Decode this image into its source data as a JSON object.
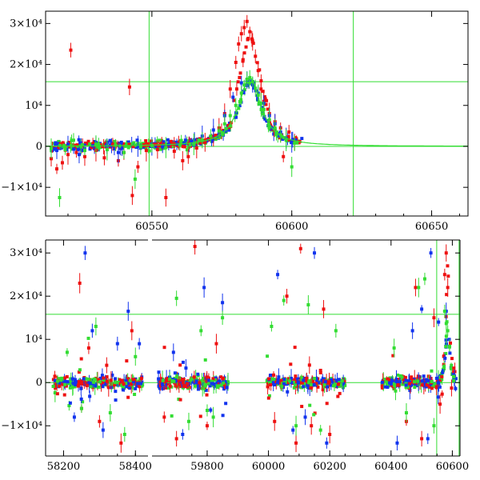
{
  "chart_data": [
    {
      "type": "scatter",
      "title": "",
      "xlabel": "",
      "ylabel": "",
      "xlim": [
        60512,
        60663
      ],
      "ylim": [
        -17000,
        33000
      ],
      "xticks": [
        {
          "value": 60550,
          "label": "60550"
        },
        {
          "value": 60600,
          "label": "60600"
        },
        {
          "value": 60650,
          "label": "60650"
        }
      ],
      "yticks": [
        {
          "value": -10000,
          "label": "−1×10⁴"
        },
        {
          "value": 0,
          "label": "0"
        },
        {
          "value": 10000,
          "label": "10⁴"
        },
        {
          "value": 20000,
          "label": "2×10⁴"
        },
        {
          "value": 30000,
          "label": "3×10⁴"
        }
      ],
      "reference_lines": {
        "horizontal": [
          0,
          15800
        ],
        "vertical": [
          60549,
          60622
        ]
      },
      "model_curve": {
        "peak_x": 60585,
        "peak_y": 16800,
        "width": 4.8,
        "color": "#33dd33"
      },
      "series": [
        {
          "color": "#ee1111",
          "points": [
            [
              60514,
              -3000
            ],
            [
              60516,
              -5500
            ],
            [
              60518,
              -4000
            ],
            [
              60520,
              -2000
            ],
            [
              60521,
              23500
            ],
            [
              60523,
              -1500
            ],
            [
              60526,
              -2500
            ],
            [
              60530,
              -1000
            ],
            [
              60533,
              -2800
            ],
            [
              60536,
              500
            ],
            [
              60538,
              -3500
            ],
            [
              60540,
              -1500
            ],
            [
              60542,
              14500
            ],
            [
              60543,
              -12000
            ],
            [
              60545,
              -5000
            ],
            [
              60548,
              -1000
            ],
            [
              60552,
              -800
            ],
            [
              60555,
              -12500
            ],
            [
              60558,
              -1200
            ],
            [
              60561,
              -3500
            ],
            [
              60563,
              -2500
            ],
            [
              60566,
              -400
            ],
            [
              60569,
              1000
            ],
            [
              60572,
              2500
            ],
            [
              60574,
              4500
            ],
            [
              60576,
              8000
            ],
            [
              60578,
              14000
            ],
            [
              60580,
              20500
            ],
            [
              60581,
              25000
            ],
            [
              60582,
              27500
            ],
            [
              60583,
              29000
            ],
            [
              60584,
              30500
            ],
            [
              60585,
              28000
            ],
            [
              60586,
              25500
            ],
            [
              60587,
              22000
            ],
            [
              60588,
              18500
            ],
            [
              60589,
              14000
            ],
            [
              60590,
              11000
            ],
            [
              60592,
              8000
            ],
            [
              60594,
              6000
            ],
            [
              60596,
              4500
            ],
            [
              60597,
              -2500
            ],
            [
              60599,
              3500
            ],
            [
              60601,
              1000
            ]
          ]
        },
        {
          "color": "#1133ee",
          "points": [
            [
              60516,
              -1000
            ],
            [
              60520,
              500
            ],
            [
              60524,
              -2000
            ],
            [
              60530,
              1000
            ],
            [
              60538,
              -1500
            ],
            [
              60545,
              20
            ],
            [
              60550,
              0
            ],
            [
              60556,
              500
            ],
            [
              60562,
              1500
            ],
            [
              60568,
              2500
            ],
            [
              60572,
              4000
            ],
            [
              60576,
              7500
            ],
            [
              60579,
              12000
            ],
            [
              60582,
              15500
            ],
            [
              60584,
              16200
            ],
            [
              60586,
              15000
            ],
            [
              60588,
              13000
            ],
            [
              60590,
              10500
            ],
            [
              60592,
              7500
            ],
            [
              60594,
              5500
            ],
            [
              60596,
              3500
            ],
            [
              60598,
              2000
            ],
            [
              60600,
              1000
            ]
          ]
        },
        {
          "color": "#33dd33",
          "points": [
            [
              60514,
              -500
            ],
            [
              60517,
              -12500
            ],
            [
              60519,
              -800
            ],
            [
              60522,
              1500
            ],
            [
              60526,
              -1000
            ],
            [
              60530,
              500
            ],
            [
              60534,
              -800
            ],
            [
              60537,
              300
            ],
            [
              60540,
              -1500
            ],
            [
              60544,
              -8000
            ],
            [
              60546,
              -100
            ],
            [
              60550,
              200
            ],
            [
              60555,
              -300
            ],
            [
              60560,
              300
            ],
            [
              60565,
              500
            ],
            [
              60568,
              1500
            ],
            [
              60571,
              2500
            ],
            [
              60574,
              3800
            ],
            [
              60576,
              5500
            ],
            [
              60578,
              7500
            ],
            [
              60580,
              10000
            ],
            [
              60582,
              13000
            ],
            [
              60583,
              15000
            ],
            [
              60584,
              16400
            ],
            [
              60585,
              16800
            ],
            [
              60586,
              15800
            ],
            [
              60587,
              14200
            ],
            [
              60588,
              12500
            ],
            [
              60589,
              10500
            ],
            [
              60590,
              9000
            ],
            [
              60592,
              6500
            ],
            [
              60594,
              4500
            ],
            [
              60596,
              2800
            ],
            [
              60598,
              1500
            ],
            [
              60600,
              -5000
            ],
            [
              60601,
              800
            ]
          ]
        }
      ]
    },
    {
      "type": "scatter",
      "title": "",
      "xlabel": "",
      "ylabel": "",
      "ylim": [
        -17000,
        33000
      ],
      "axis_breaks": true,
      "segments": [
        {
          "xlim": [
            58150,
            58435
          ]
        },
        {
          "xlim": [
            59620,
            60625
          ]
        }
      ],
      "xticks": [
        {
          "value": 58200,
          "label": "58200"
        },
        {
          "value": 58400,
          "label": "58400"
        },
        {
          "value": 59800,
          "label": "59800"
        },
        {
          "value": 60000,
          "label": "60000"
        },
        {
          "value": 60200,
          "label": "60200"
        },
        {
          "value": 60400,
          "label": "60400"
        },
        {
          "value": 60600,
          "label": "60600"
        }
      ],
      "yticks": [
        {
          "value": -10000,
          "label": "−1×10⁴"
        },
        {
          "value": 0,
          "label": "0"
        },
        {
          "value": 10000,
          "label": "10⁴"
        },
        {
          "value": 20000,
          "label": "2×10⁴"
        },
        {
          "value": 30000,
          "label": "3×10⁴"
        }
      ],
      "reference_lines": {
        "horizontal": [
          0,
          15800
        ],
        "vertical": [
          60549,
          60622
        ]
      },
      "seasons": [
        [
          58170,
          58420
        ],
        [
          59640,
          59870
        ],
        [
          59995,
          60250
        ],
        [
          60370,
          60612
        ]
      ],
      "series": [
        {
          "color": "#ee1111",
          "points": [
            [
              58245,
              23000
            ],
            [
              58250,
              -6000
            ],
            [
              58270,
              8000
            ],
            [
              58300,
              -9000
            ],
            [
              58320,
              4000
            ],
            [
              58360,
              -14000
            ],
            [
              58390,
              12000
            ],
            [
              59660,
              -8000
            ],
            [
              59700,
              -13000
            ],
            [
              59760,
              31500
            ],
            [
              59800,
              -10000
            ],
            [
              59830,
              9000
            ],
            [
              60020,
              -9000
            ],
            [
              60060,
              20000
            ],
            [
              60090,
              -14000
            ],
            [
              60105,
              31000
            ],
            [
              60140,
              -10000
            ],
            [
              60180,
              17000
            ],
            [
              60200,
              -12000
            ],
            [
              60450,
              -9000
            ],
            [
              60480,
              22000
            ],
            [
              60500,
              -13000
            ],
            [
              60540,
              15000
            ],
            [
              60560,
              -5000
            ],
            [
              60575,
              25000
            ],
            [
              60580,
              30000
            ],
            [
              60585,
              22000
            ]
          ]
        },
        {
          "color": "#1133ee",
          "points": [
            [
              58230,
              -8000
            ],
            [
              58260,
              30000
            ],
            [
              58280,
              12000
            ],
            [
              58310,
              -11000
            ],
            [
              58350,
              9000
            ],
            [
              58380,
              16500
            ],
            [
              59690,
              7000
            ],
            [
              59720,
              -12000
            ],
            [
              59790,
              22000
            ],
            [
              59850,
              18500
            ],
            [
              60030,
              25000
            ],
            [
              60080,
              -11000
            ],
            [
              60120,
              -8000
            ],
            [
              60150,
              30000
            ],
            [
              60190,
              -14000
            ],
            [
              60420,
              -14000
            ],
            [
              60470,
              12000
            ],
            [
              60500,
              17000
            ],
            [
              60520,
              -13000
            ],
            [
              60530,
              30000
            ],
            [
              60555,
              14000
            ],
            [
              60580,
              16500
            ]
          ]
        },
        {
          "color": "#33dd33",
          "points": [
            [
              58210,
              7000
            ],
            [
              58250,
              -6000
            ],
            [
              58290,
              13000
            ],
            [
              58330,
              -7000
            ],
            [
              58370,
              -12000
            ],
            [
              58400,
              6000
            ],
            [
              59700,
              19500
            ],
            [
              59740,
              -9000
            ],
            [
              59780,
              12000
            ],
            [
              59820,
              -8000
            ],
            [
              59850,
              15000
            ],
            [
              60010,
              13000
            ],
            [
              60050,
              19000
            ],
            [
              60090,
              -10000
            ],
            [
              60130,
              18000
            ],
            [
              60170,
              -11000
            ],
            [
              60220,
              12000
            ],
            [
              60410,
              8000
            ],
            [
              60450,
              -7000
            ],
            [
              60490,
              22000
            ],
            [
              60510,
              24000
            ],
            [
              60540,
              -10000
            ],
            [
              60575,
              16500
            ],
            [
              60585,
              12000
            ]
          ]
        }
      ]
    }
  ]
}
